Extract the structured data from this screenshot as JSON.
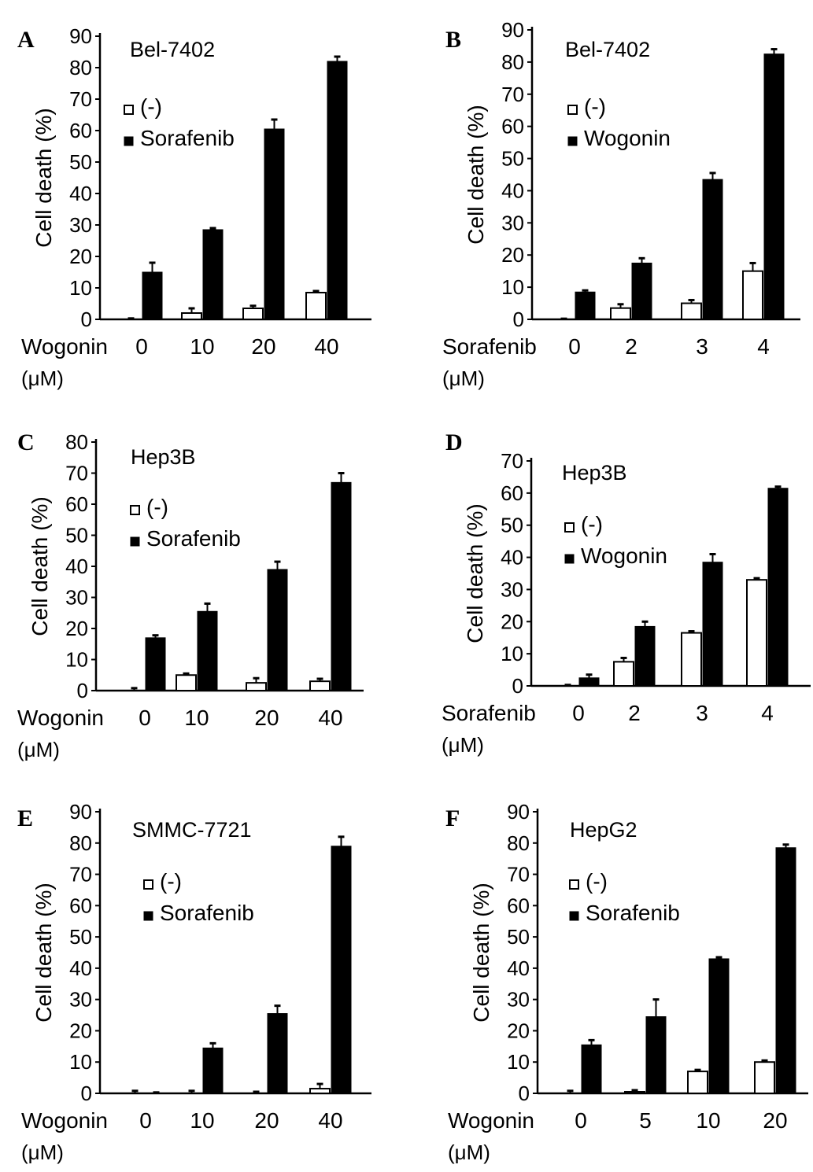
{
  "figure": {
    "background": "#ffffff",
    "colors": {
      "empty_bar_fill": "#ffffff",
      "filled_bar_fill": "#000000",
      "axis": "#000000"
    }
  },
  "chart_data": [
    {
      "panel": "A",
      "type": "bar",
      "title": "Bel-7402",
      "xlabel": "Wogonin",
      "xunit": "(μM)",
      "ylabel": "Cell death (%)",
      "categories": [
        "0",
        "10",
        "20",
        "40"
      ],
      "ylim": [
        0,
        90
      ],
      "yticks": [
        0,
        10,
        20,
        30,
        40,
        50,
        60,
        70,
        80,
        90
      ],
      "legend": {
        "position": "upper-left",
        "labels": [
          "(-)",
          "Sorafenib"
        ]
      },
      "series": [
        {
          "name": "(-)",
          "style": "open",
          "values": [
            0,
            2,
            3.5,
            8.5
          ],
          "errors": [
            0.3,
            1.5,
            0.8,
            0.5
          ]
        },
        {
          "name": "Sorafenib",
          "style": "filled",
          "values": [
            15,
            28.5,
            60.5,
            82
          ],
          "errors": [
            3,
            0.5,
            3,
            1.5
          ]
        }
      ]
    },
    {
      "panel": "B",
      "type": "bar",
      "title": "Bel-7402",
      "xlabel": "Sorafenib",
      "xunit": "(μM)",
      "ylabel": "Cell death (%)",
      "categories": [
        "0",
        "2",
        "3",
        "4"
      ],
      "ylim": [
        0,
        90
      ],
      "yticks": [
        0,
        10,
        20,
        30,
        40,
        50,
        60,
        70,
        80,
        90
      ],
      "legend": {
        "position": "upper-left",
        "labels": [
          "(-)",
          "Wogonin"
        ]
      },
      "series": [
        {
          "name": "(-)",
          "style": "open",
          "values": [
            0,
            3.5,
            5,
            15
          ],
          "errors": [
            0.2,
            1.2,
            1,
            2.5
          ]
        },
        {
          "name": "Wogonin",
          "style": "filled",
          "values": [
            8.5,
            17.5,
            43.5,
            82.5
          ],
          "errors": [
            0.5,
            1.5,
            2,
            1.5
          ]
        }
      ]
    },
    {
      "panel": "C",
      "type": "bar",
      "title": "Hep3B",
      "xlabel": "Wogonin",
      "xunit": "(μM)",
      "ylabel": "Cell death (%)",
      "categories": [
        "0",
        "10",
        "20",
        "40"
      ],
      "ylim": [
        0,
        80
      ],
      "yticks": [
        0,
        10,
        20,
        30,
        40,
        50,
        60,
        70,
        80
      ],
      "legend": {
        "position": "upper-left",
        "labels": [
          "(-)",
          "Sorafenib"
        ]
      },
      "series": [
        {
          "name": "(-)",
          "style": "open",
          "values": [
            0,
            5,
            2.5,
            3
          ],
          "errors": [
            0.8,
            0.5,
            1.5,
            0.8
          ]
        },
        {
          "name": "Sorafenib",
          "style": "filled",
          "values": [
            17,
            25.5,
            39,
            67
          ],
          "errors": [
            0.8,
            2.5,
            2.5,
            3
          ]
        }
      ]
    },
    {
      "panel": "D",
      "type": "bar",
      "title": "Hep3B",
      "xlabel": "Sorafenib",
      "xunit": "(μM)",
      "ylabel": "Cell death (%)",
      "categories": [
        "0",
        "2",
        "3",
        "4"
      ],
      "ylim": [
        0,
        70
      ],
      "yticks": [
        0,
        10,
        20,
        30,
        40,
        50,
        60,
        70
      ],
      "legend": {
        "position": "upper-left",
        "labels": [
          "(-)",
          "Wogonin"
        ]
      },
      "series": [
        {
          "name": "(-)",
          "style": "open",
          "values": [
            0,
            7.5,
            16.5,
            33
          ],
          "errors": [
            0.3,
            1.2,
            0.5,
            0.5
          ]
        },
        {
          "name": "Wogonin",
          "style": "filled",
          "values": [
            2.5,
            18.5,
            38.5,
            61.5
          ],
          "errors": [
            1,
            1.5,
            2.5,
            0.5
          ]
        }
      ]
    },
    {
      "panel": "E",
      "type": "bar",
      "title": "SMMC-7721",
      "xlabel": "Wogonin",
      "xunit": "(μM)",
      "ylabel": "Cell death (%)",
      "categories": [
        "0",
        "10",
        "20",
        "40"
      ],
      "ylim": [
        0,
        90
      ],
      "yticks": [
        0,
        10,
        20,
        30,
        40,
        50,
        60,
        70,
        80,
        90
      ],
      "legend": {
        "position": "upper-left",
        "labels": [
          "(-)",
          "Sorafenib"
        ]
      },
      "series": [
        {
          "name": "(-)",
          "style": "open",
          "values": [
            0,
            0,
            0,
            1.5
          ],
          "errors": [
            0.8,
            0.8,
            0.5,
            1.5
          ]
        },
        {
          "name": "Sorafenib",
          "style": "filled",
          "values": [
            0,
            14.5,
            25.5,
            79
          ],
          "errors": [
            0.3,
            1.5,
            2.5,
            3
          ]
        }
      ]
    },
    {
      "panel": "F",
      "type": "bar",
      "title": "HepG2",
      "xlabel": "Wogonin",
      "xunit": "(μM)",
      "ylabel": "Cell death (%)",
      "categories": [
        "0",
        "5",
        "10",
        "20"
      ],
      "ylim": [
        0,
        90
      ],
      "yticks": [
        0,
        10,
        20,
        30,
        40,
        50,
        60,
        70,
        80,
        90
      ],
      "legend": {
        "position": "upper-left",
        "labels": [
          "(-)",
          "Sorafenib"
        ]
      },
      "series": [
        {
          "name": "(-)",
          "style": "open",
          "values": [
            0,
            0.5,
            7,
            10
          ],
          "errors": [
            0.8,
            0.5,
            0.5,
            0.5
          ]
        },
        {
          "name": "Sorafenib",
          "style": "filled",
          "values": [
            15.5,
            24.5,
            43,
            78.5
          ],
          "errors": [
            1.5,
            5.5,
            0.5,
            1
          ]
        }
      ]
    }
  ]
}
